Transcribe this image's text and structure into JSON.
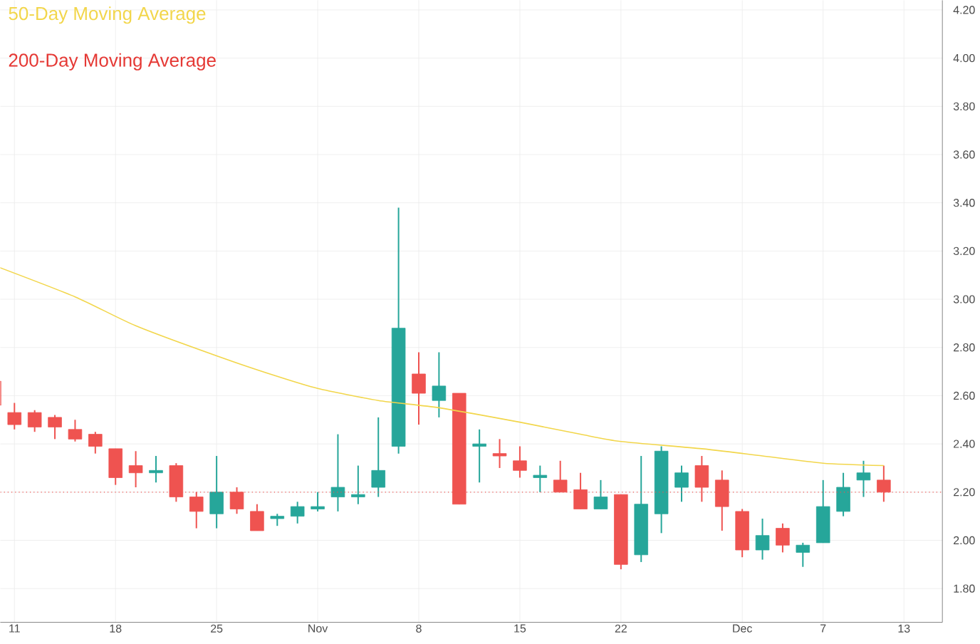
{
  "chart_data": {
    "type": "candlestick",
    "categories": [
      null,
      "11",
      null,
      null,
      null,
      null,
      "18",
      null,
      null,
      null,
      null,
      "25",
      null,
      null,
      null,
      null,
      "Nov",
      null,
      null,
      null,
      null,
      "8",
      null,
      null,
      null,
      null,
      "15",
      null,
      null,
      null,
      null,
      "22",
      null,
      null,
      null,
      null,
      null,
      "Dec",
      null,
      null,
      null,
      "7",
      null,
      null,
      null,
      "13"
    ],
    "ohlc": [
      [
        2.66,
        2.67,
        2.55,
        2.56
      ],
      [
        2.53,
        2.57,
        2.46,
        2.48
      ],
      [
        2.53,
        2.54,
        2.45,
        2.47
      ],
      [
        2.51,
        2.52,
        2.42,
        2.47
      ],
      [
        2.46,
        2.5,
        2.41,
        2.42
      ],
      [
        2.44,
        2.45,
        2.36,
        2.39
      ],
      [
        2.38,
        2.38,
        2.23,
        2.26
      ],
      [
        2.31,
        2.37,
        2.22,
        2.28
      ],
      [
        2.28,
        2.35,
        2.24,
        2.29
      ],
      [
        2.31,
        2.32,
        2.16,
        2.18
      ],
      [
        2.18,
        2.2,
        2.05,
        2.12
      ],
      [
        2.11,
        2.35,
        2.05,
        2.2
      ],
      [
        2.2,
        2.22,
        2.11,
        2.13
      ],
      [
        2.12,
        2.15,
        2.04,
        2.04
      ],
      [
        2.09,
        2.11,
        2.06,
        2.1
      ],
      [
        2.1,
        2.16,
        2.07,
        2.14
      ],
      [
        2.13,
        2.2,
        2.12,
        2.14
      ],
      [
        2.18,
        2.44,
        2.12,
        2.22
      ],
      [
        2.18,
        2.31,
        2.15,
        2.19
      ],
      [
        2.22,
        2.51,
        2.18,
        2.29
      ],
      [
        2.39,
        3.38,
        2.36,
        2.88
      ],
      [
        2.69,
        2.78,
        2.48,
        2.61
      ],
      [
        2.58,
        2.78,
        2.51,
        2.64
      ],
      [
        2.61,
        2.61,
        2.15,
        2.15
      ],
      [
        2.39,
        2.46,
        2.24,
        2.4
      ],
      [
        2.36,
        2.42,
        2.3,
        2.35
      ],
      [
        2.33,
        2.39,
        2.26,
        2.29
      ],
      [
        2.26,
        2.31,
        2.2,
        2.27
      ],
      [
        2.25,
        2.33,
        2.2,
        2.2
      ],
      [
        2.21,
        2.28,
        2.13,
        2.13
      ],
      [
        2.13,
        2.25,
        2.13,
        2.18
      ],
      [
        2.19,
        2.19,
        1.88,
        1.9
      ],
      [
        1.94,
        2.35,
        1.91,
        2.15
      ],
      [
        2.11,
        2.39,
        2.03,
        2.37
      ],
      [
        2.22,
        2.31,
        2.16,
        2.28
      ],
      [
        2.31,
        2.35,
        2.16,
        2.22
      ],
      [
        2.25,
        2.29,
        2.04,
        2.14
      ],
      [
        2.12,
        2.13,
        1.93,
        1.96
      ],
      [
        1.96,
        2.09,
        1.92,
        2.02
      ],
      [
        2.05,
        2.07,
        1.95,
        1.98
      ],
      [
        1.95,
        1.99,
        1.89,
        1.98
      ],
      [
        1.99,
        2.25,
        1.99,
        2.14
      ],
      [
        2.12,
        2.28,
        2.1,
        2.22
      ],
      [
        2.25,
        2.33,
        2.18,
        2.28
      ],
      [
        2.25,
        2.31,
        2.16,
        2.2
      ],
      null
    ],
    "colors": [
      "#ef5350",
      "#ef5350",
      "#ef5350",
      "#ef5350",
      "#ef5350",
      "#ef5350",
      "#ef5350",
      "#ef5350",
      "#26a69a",
      "#ef5350",
      "#ef5350",
      "#26a69a",
      "#ef5350",
      "#ef5350",
      "#26a69a",
      "#26a69a",
      "#26a69a",
      "#26a69a",
      "#26a69a",
      "#26a69a",
      "#26a69a",
      "#ef5350",
      "#26a69a",
      "#ef5350",
      "#26a69a",
      "#ef5350",
      "#ef5350",
      "#26a69a",
      "#ef5350",
      "#ef5350",
      "#26a69a",
      "#ef5350",
      "#26a69a",
      "#26a69a",
      "#26a69a",
      "#ef5350",
      "#ef5350",
      "#ef5350",
      "#26a69a",
      "#ef5350",
      "#26a69a",
      "#26a69a",
      "#26a69a",
      "#26a69a",
      "#ef5350",
      null
    ],
    "series": [
      {
        "name": "50-Day Moving Average",
        "type": "line",
        "color": "#f2d64b",
        "values": [
          3.14,
          null,
          null,
          null,
          3.01,
          null,
          null,
          2.89,
          null,
          null,
          null,
          2.765,
          null,
          null,
          2.68,
          null,
          2.63,
          null,
          null,
          2.58,
          null,
          null,
          2.55,
          null,
          null,
          null,
          2.49,
          null,
          null,
          2.44,
          null,
          2.41,
          null,
          null,
          null,
          2.38,
          null,
          null,
          2.35,
          null,
          null,
          2.32,
          null,
          null,
          2.31,
          null
        ]
      },
      {
        "name": "200-Day Moving Average",
        "type": "line",
        "color": "#e53935",
        "values": [
          null,
          null,
          null,
          null,
          null,
          null,
          null,
          null,
          null,
          null,
          null,
          null,
          null,
          null,
          null,
          null,
          null,
          null,
          null,
          null,
          null,
          null,
          null,
          null,
          null,
          null,
          null,
          null,
          null,
          null,
          null,
          null,
          null,
          null,
          null,
          null,
          null,
          null,
          null,
          null,
          null,
          null,
          null,
          null,
          null,
          null
        ]
      }
    ],
    "ylim": [
      1.66,
      4.24
    ],
    "yticks": [
      {
        "value": 1.8,
        "label": "1.80"
      },
      {
        "value": 2.0,
        "label": "2.00"
      },
      {
        "value": 2.2,
        "label": "2.20"
      },
      {
        "value": 2.4,
        "label": "2.40"
      },
      {
        "value": 2.6,
        "label": "2.60"
      },
      {
        "value": 2.8,
        "label": "2.80"
      },
      {
        "value": 3.0,
        "label": "3.00"
      },
      {
        "value": 3.2,
        "label": "3.20"
      },
      {
        "value": 3.4,
        "label": "3.40"
      },
      {
        "value": 3.6,
        "label": "3.60"
      },
      {
        "value": 3.8,
        "label": "3.80"
      },
      {
        "value": 4.0,
        "label": "4.00"
      },
      {
        "value": 4.2,
        "label": "4.20"
      }
    ],
    "ref_lines": [
      {
        "axis": "y",
        "value": 2.2,
        "color": "#ef5350",
        "line_style": "dotted"
      }
    ],
    "grid": true,
    "legend": "top left"
  }
}
